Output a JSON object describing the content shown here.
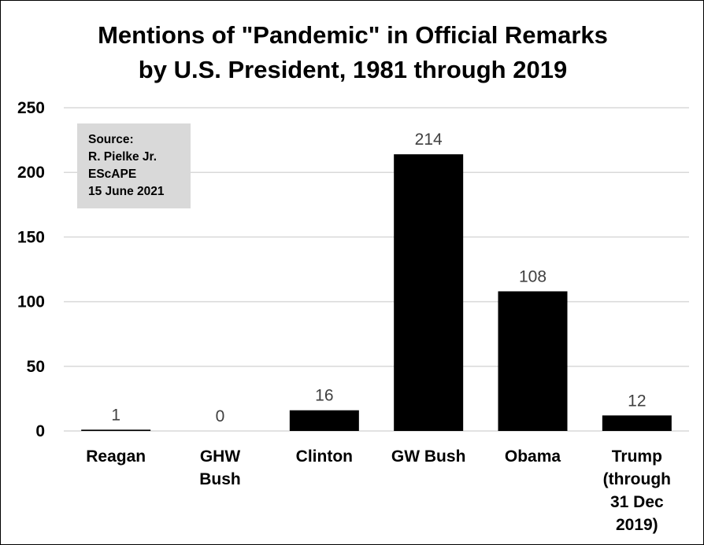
{
  "chart_data": {
    "type": "bar",
    "title_lines": [
      "Mentions of \"Pandemic\" in Official Remarks",
      "by U.S. President, 1981 through 2019"
    ],
    "categories": [
      [
        "Reagan"
      ],
      [
        "GHW",
        "Bush"
      ],
      [
        "Clinton"
      ],
      [
        "GW Bush"
      ],
      [
        "Obama"
      ],
      [
        "Trump",
        "(through",
        "31 Dec",
        "2019)"
      ]
    ],
    "values": [
      1,
      0,
      16,
      214,
      108,
      12
    ],
    "data_labels": [
      "1",
      "0",
      "16",
      "214",
      "108",
      "12"
    ],
    "ylim": [
      0,
      250
    ],
    "yticks": [
      0,
      50,
      100,
      150,
      200,
      250
    ],
    "grid": true,
    "bar_color": "#000000",
    "grid_color": "#d9d9d9",
    "legend": "none"
  },
  "source_box": {
    "lines": [
      "Source:",
      "R. Pielke Jr.",
      "EScAPE",
      "15 June 2021"
    ],
    "background": "#d9d9d9"
  }
}
